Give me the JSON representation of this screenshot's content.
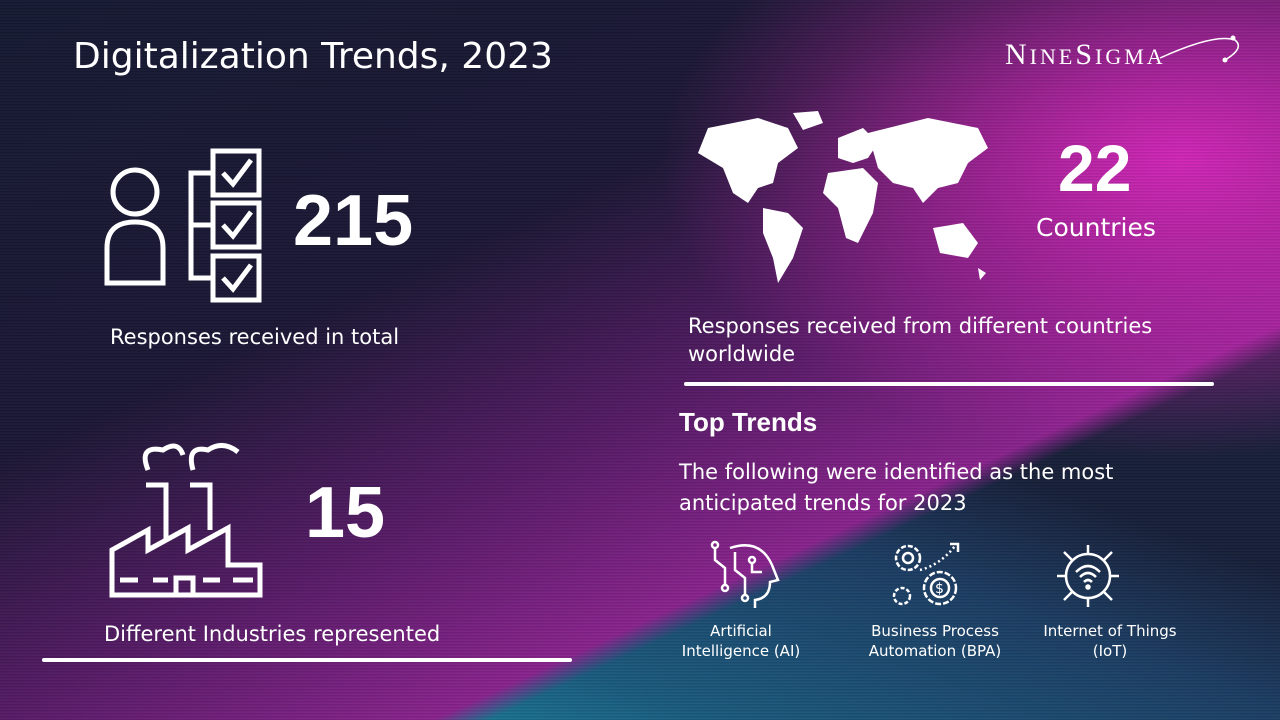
{
  "title": "Digitalization Trends, 2023",
  "logo": {
    "text": "NineSigma"
  },
  "stats": {
    "responses": {
      "value": "215",
      "caption": "Responses received in total",
      "icon": "person-checklist-icon"
    },
    "countries": {
      "value": "22",
      "unit": "Countries",
      "caption_line1": "Responses received from different countries",
      "caption_line2": "worldwide",
      "icon": "world-map-icon"
    },
    "industries": {
      "value": "15",
      "caption": "Different Industries represented",
      "icon": "factory-icon"
    }
  },
  "top_trends": {
    "heading": "Top Trends",
    "desc_line1": "The following were identified as the most",
    "desc_line2": "anticipated trends for 2023",
    "items": [
      {
        "line1": "Artificial",
        "line2": "Intelligence (AI)",
        "icon": "ai-head-icon"
      },
      {
        "line1": "Business Process",
        "line2": "Automation (BPA)",
        "icon": "gears-dollar-icon"
      },
      {
        "line1": "Internet of Things",
        "line2": "(IoT)",
        "icon": "iot-wifi-icon"
      }
    ]
  },
  "colors": {
    "magenta": "#d42fb8",
    "navy": "#18203a",
    "cyan": "#1aa8b8"
  }
}
